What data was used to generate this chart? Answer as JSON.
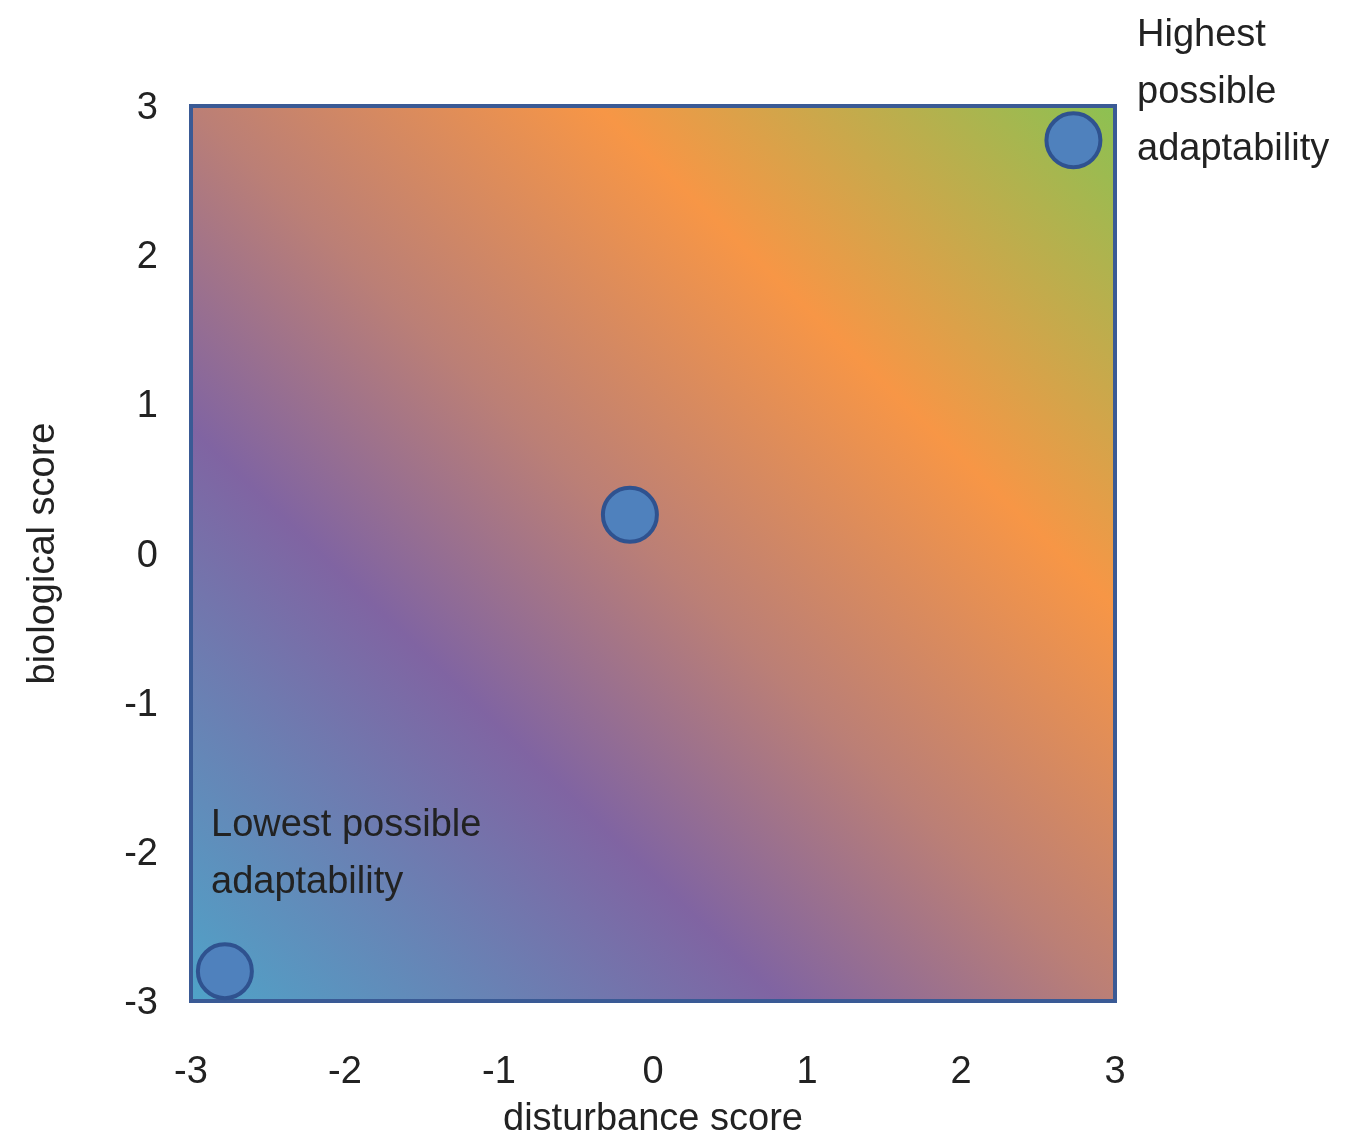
{
  "chart_data": {
    "type": "scatter",
    "xlabel": "disturbance score",
    "ylabel": "biological score",
    "xlim": [
      -3,
      3
    ],
    "ylim": [
      -3,
      3
    ],
    "xticks": [
      -3,
      -2,
      -1,
      0,
      1,
      2,
      3
    ],
    "yticks": [
      -3,
      -2,
      -1,
      0,
      1,
      2,
      3
    ],
    "marker": "circle",
    "grid": false,
    "series": [
      {
        "color": "#4f81bd",
        "x": [
          -2.78,
          -0.15,
          2.73
        ],
        "values": [
          -2.8,
          0.26,
          2.77
        ]
      }
    ],
    "annotations": [
      "Lowest possible adaptability",
      "Highest possible adaptability"
    ]
  }
}
